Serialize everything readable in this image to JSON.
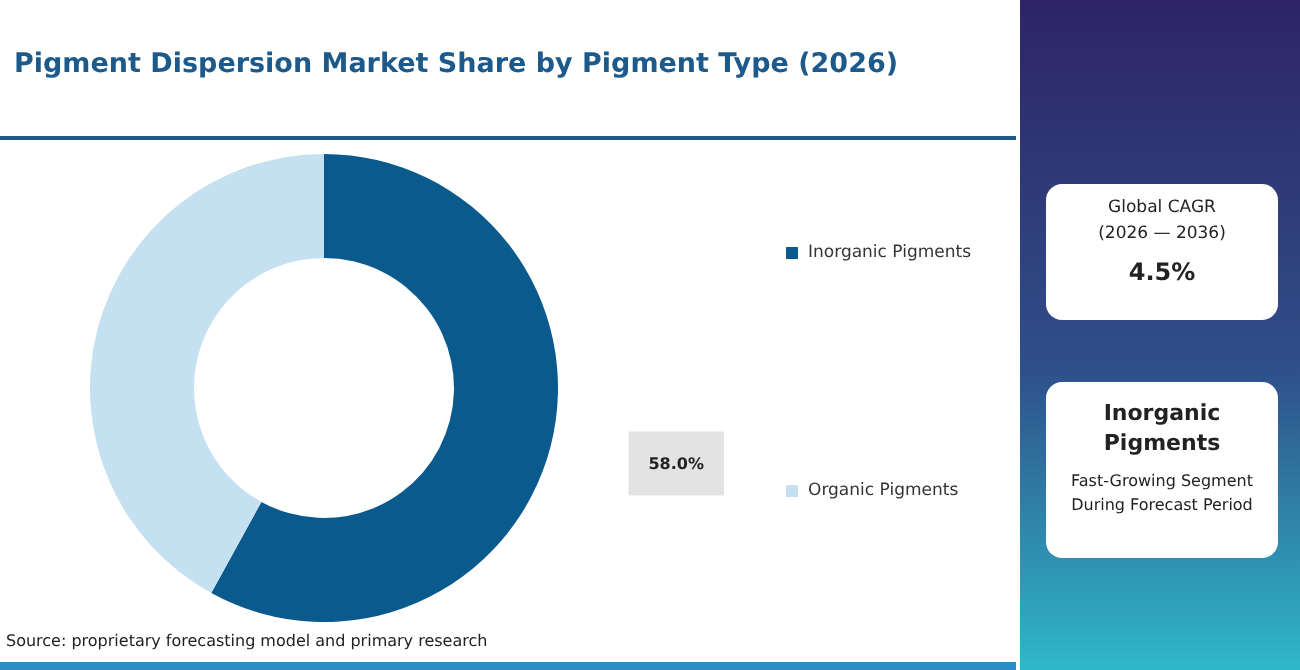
{
  "chart_data": {
    "type": "donut",
    "title": "Pigment Dispersion Market Share by Pigment Type (2026)",
    "categories": [
      "Inorganic Pigments",
      "Organic Pigments"
    ],
    "values": [
      58,
      42
    ],
    "colors": [
      "#0b5a8e",
      "#c5e0f0"
    ],
    "value_labels": [
      "58.0%",
      null
    ],
    "legend": "right",
    "annotations": [
      "Source: proprietary forecasting model and primary research",
      "Global CAGR",
      "(2026 — 2036)",
      "4.5%",
      "Inorganic Pigments",
      "Fast-Growing Segment During Forecast Period"
    ]
  }
}
